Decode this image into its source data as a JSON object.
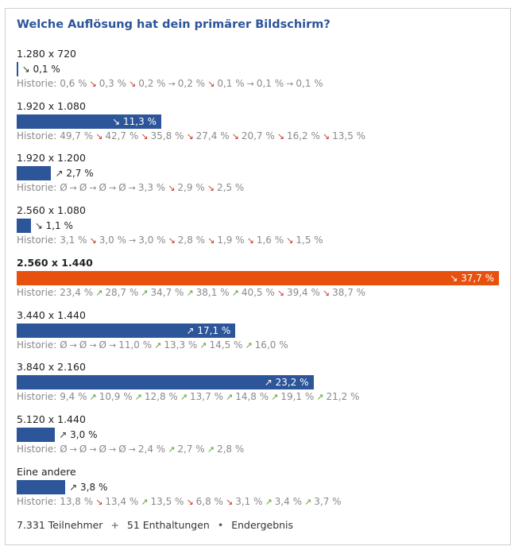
{
  "poll": {
    "title": "Welche Auflösung hat dein primärer Bildschirm?",
    "history_label": "Historie:",
    "footer": {
      "participants": "7.331 Teilnehmer",
      "plus": "+",
      "abstentions": "51 Enthaltungen",
      "bullet": "•",
      "status": "Endergebnis"
    }
  },
  "colors": {
    "bar": "#2d5599",
    "highlight": "#e8500e",
    "title": "#2d5599",
    "up": "#5aa02c",
    "down": "#c0392b"
  },
  "chart_data": {
    "type": "bar",
    "orientation": "horizontal",
    "title": "Welche Auflösung hat dein primärer Bildschirm?",
    "xlim": [
      0,
      37.7
    ],
    "categories": [
      "1.280 x 720",
      "1.920 x 1.080",
      "1.920 x 1.200",
      "2.560 x 1.080",
      "2.560 x 1.440",
      "3.440 x 1.440",
      "3.840 x 2.160",
      "5.120 x 1.440",
      "Eine andere"
    ],
    "values": [
      0.1,
      11.3,
      2.7,
      1.1,
      37.7,
      17.1,
      23.2,
      3.0,
      3.8
    ],
    "value_labels": [
      "0,1 %",
      "11,3 %",
      "2,7 %",
      "1,1 %",
      "37,7 %",
      "17,1 %",
      "23,2 %",
      "3,0 %",
      "3,8 %"
    ],
    "trends": [
      "down",
      "down",
      "up",
      "down",
      "down",
      "up",
      "up",
      "up",
      "up"
    ],
    "highlighted": [
      false,
      false,
      false,
      false,
      true,
      false,
      false,
      false,
      false
    ],
    "history": [
      [
        {
          "value": "0,6 %"
        },
        {
          "trend": "down",
          "value": "0,3 %"
        },
        {
          "trend": "down",
          "value": "0,2 %"
        },
        {
          "trend": "same",
          "value": "0,2 %"
        },
        {
          "trend": "down",
          "value": "0,1 %"
        },
        {
          "trend": "same",
          "value": "0,1 %"
        },
        {
          "trend": "same",
          "value": "0,1 %"
        }
      ],
      [
        {
          "value": "49,7 %"
        },
        {
          "trend": "down",
          "value": "42,7 %"
        },
        {
          "trend": "down",
          "value": "35,8 %"
        },
        {
          "trend": "down",
          "value": "27,4 %"
        },
        {
          "trend": "down",
          "value": "20,7 %"
        },
        {
          "trend": "down",
          "value": "16,2 %"
        },
        {
          "trend": "down",
          "value": "13,5 %"
        }
      ],
      [
        {
          "value": "Ø"
        },
        {
          "trend": "same",
          "value": "Ø"
        },
        {
          "trend": "same",
          "value": "Ø"
        },
        {
          "trend": "same",
          "value": "Ø"
        },
        {
          "trend": "same",
          "value": "3,3 %"
        },
        {
          "trend": "down",
          "value": "2,9 %"
        },
        {
          "trend": "down",
          "value": "2,5 %"
        }
      ],
      [
        {
          "value": "3,1 %"
        },
        {
          "trend": "down",
          "value": "3,0 %"
        },
        {
          "trend": "same",
          "value": "3,0 %"
        },
        {
          "trend": "down",
          "value": "2,8 %"
        },
        {
          "trend": "down",
          "value": "1,9 %"
        },
        {
          "trend": "down",
          "value": "1,6 %"
        },
        {
          "trend": "down",
          "value": "1,5 %"
        }
      ],
      [
        {
          "value": "23,4 %"
        },
        {
          "trend": "up",
          "value": "28,7 %"
        },
        {
          "trend": "up",
          "value": "34,7 %"
        },
        {
          "trend": "up",
          "value": "38,1 %"
        },
        {
          "trend": "up",
          "value": "40,5 %"
        },
        {
          "trend": "down",
          "value": "39,4 %"
        },
        {
          "trend": "down",
          "value": "38,7 %"
        }
      ],
      [
        {
          "value": "Ø"
        },
        {
          "trend": "same",
          "value": "Ø"
        },
        {
          "trend": "same",
          "value": "Ø"
        },
        {
          "trend": "same",
          "value": "11,0 %"
        },
        {
          "trend": "up",
          "value": "13,3 %"
        },
        {
          "trend": "up",
          "value": "14,5 %"
        },
        {
          "trend": "up",
          "value": "16,0 %"
        }
      ],
      [
        {
          "value": "9,4 %"
        },
        {
          "trend": "up",
          "value": "10,9 %"
        },
        {
          "trend": "up",
          "value": "12,8 %"
        },
        {
          "trend": "up",
          "value": "13,7 %"
        },
        {
          "trend": "up",
          "value": "14,8 %"
        },
        {
          "trend": "up",
          "value": "19,1 %"
        },
        {
          "trend": "up",
          "value": "21,2 %"
        }
      ],
      [
        {
          "value": "Ø"
        },
        {
          "trend": "same",
          "value": "Ø"
        },
        {
          "trend": "same",
          "value": "Ø"
        },
        {
          "trend": "same",
          "value": "Ø"
        },
        {
          "trend": "same",
          "value": "2,4 %"
        },
        {
          "trend": "up",
          "value": "2,7 %"
        },
        {
          "trend": "up",
          "value": "2,8 %"
        }
      ],
      [
        {
          "value": "13,8 %"
        },
        {
          "trend": "down",
          "value": "13,4 %"
        },
        {
          "trend": "up",
          "value": "13,5 %"
        },
        {
          "trend": "down",
          "value": "6,8 %"
        },
        {
          "trend": "down",
          "value": "3,1 %"
        },
        {
          "trend": "up",
          "value": "3,4 %"
        },
        {
          "trend": "up",
          "value": "3,7 %"
        }
      ]
    ]
  }
}
